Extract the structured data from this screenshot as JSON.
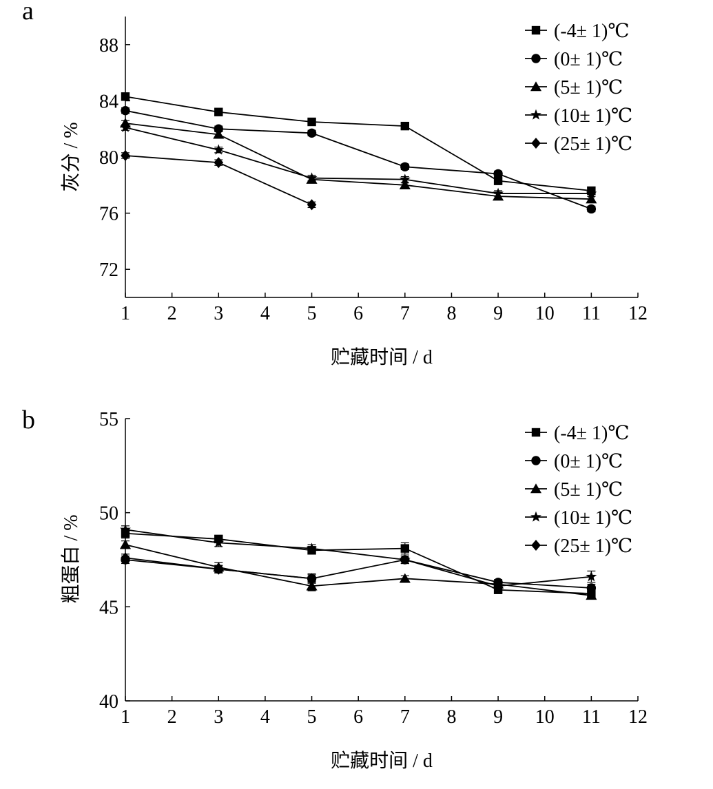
{
  "chart_data": [
    {
      "panel_label": "a",
      "type": "line",
      "xlabel": "贮藏时间 / d",
      "ylabel": "灰分 / %",
      "xlim": [
        1,
        12
      ],
      "ylim": [
        70,
        90
      ],
      "xticks": [
        1,
        2,
        3,
        4,
        5,
        6,
        7,
        8,
        9,
        10,
        11,
        12
      ],
      "yticks": [
        72,
        76,
        80,
        84,
        88
      ],
      "legend_position": "top-right",
      "grid": false,
      "series": [
        {
          "name": "(-4± 1)℃",
          "marker": "square",
          "x": [
            1,
            3,
            5,
            7,
            9,
            11
          ],
          "values": [
            84.3,
            83.2,
            82.5,
            82.2,
            78.3,
            77.6
          ],
          "errors": [
            0.2,
            0.2,
            0.2,
            0.2,
            0.2,
            0.2
          ]
        },
        {
          "name": "(0± 1)℃",
          "marker": "circle",
          "x": [
            1,
            3,
            5,
            7,
            9,
            11
          ],
          "values": [
            83.3,
            82.0,
            81.7,
            79.3,
            78.8,
            76.3
          ],
          "errors": [
            0.2,
            0.2,
            0.2,
            0.2,
            0.2,
            0.2
          ]
        },
        {
          "name": "(5± 1)℃",
          "marker": "triangle",
          "x": [
            1,
            3,
            5,
            7,
            9,
            11
          ],
          "values": [
            82.4,
            81.6,
            78.4,
            78.0,
            77.2,
            77.0
          ],
          "errors": [
            0.2,
            0.2,
            0.2,
            0.2,
            0.2,
            0.2
          ]
        },
        {
          "name": "(10± 1)℃",
          "marker": "star",
          "x": [
            1,
            3,
            5,
            7,
            9,
            11
          ],
          "values": [
            82.1,
            80.5,
            78.5,
            78.4,
            77.4,
            77.4
          ],
          "errors": [
            0.2,
            0.2,
            0.2,
            0.2,
            0.2,
            0.2
          ]
        },
        {
          "name": "(25± 1)℃",
          "marker": "diamond",
          "x": [
            1,
            3,
            5
          ],
          "values": [
            80.1,
            79.6,
            76.6
          ],
          "errors": [
            0.2,
            0.2,
            0.2
          ]
        }
      ]
    },
    {
      "panel_label": "b",
      "type": "line",
      "xlabel": "贮藏时间 / d",
      "ylabel": "粗蛋白 / %",
      "xlim": [
        1,
        12
      ],
      "ylim": [
        40,
        55
      ],
      "xticks": [
        1,
        2,
        3,
        4,
        5,
        6,
        7,
        8,
        9,
        10,
        11,
        12
      ],
      "yticks": [
        40,
        45,
        50,
        55
      ],
      "legend_position": "top-right",
      "grid": false,
      "series": [
        {
          "name": "(-4± 1)℃",
          "marker": "square",
          "x": [
            1,
            3,
            5,
            7,
            9,
            11
          ],
          "values": [
            48.9,
            48.6,
            48.0,
            48.1,
            45.9,
            45.7
          ],
          "errors": [
            0.25,
            0.2,
            0.2,
            0.3,
            0.15,
            0.2
          ]
        },
        {
          "name": "(0± 1)℃",
          "marker": "circle",
          "x": [
            1,
            3,
            5,
            7,
            9,
            11
          ],
          "values": [
            47.5,
            47.0,
            46.5,
            47.5,
            46.3,
            46.0
          ],
          "errors": [
            0.2,
            0.2,
            0.2,
            0.2,
            0.15,
            0.2
          ]
        },
        {
          "name": "(5± 1)℃",
          "marker": "triangle",
          "x": [
            1,
            3,
            5,
            7,
            9,
            11
          ],
          "values": [
            48.3,
            47.1,
            46.1,
            46.5,
            46.2,
            45.6
          ],
          "errors": [
            0.2,
            0.25,
            0.25,
            0.15,
            0.15,
            0.2
          ]
        },
        {
          "name": "(10± 1)℃",
          "marker": "star",
          "x": [
            1,
            3,
            5,
            7,
            9,
            11
          ],
          "values": [
            49.1,
            48.4,
            48.1,
            47.5,
            46.1,
            46.6
          ],
          "errors": [
            0.2,
            0.2,
            0.2,
            0.2,
            0.15,
            0.3
          ]
        },
        {
          "name": "(25± 1)℃",
          "marker": "diamond",
          "x": [
            1,
            3,
            5
          ],
          "values": [
            47.6,
            47.0,
            46.5
          ],
          "errors": [
            0.2,
            0.2,
            0.25
          ]
        }
      ]
    }
  ]
}
